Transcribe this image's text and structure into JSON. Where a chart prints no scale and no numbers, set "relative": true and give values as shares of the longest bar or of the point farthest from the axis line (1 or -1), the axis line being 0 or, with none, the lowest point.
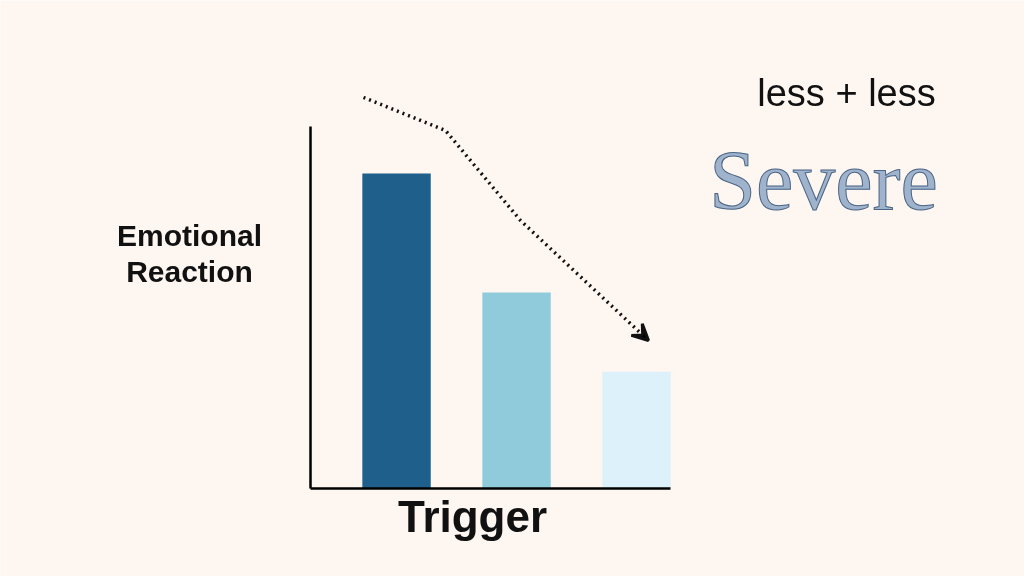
{
  "chart_data": {
    "type": "bar",
    "relative": true,
    "categories": [
      null,
      null,
      null
    ],
    "series": [
      {
        "values": [
          1,
          0.622,
          0.371
        ],
        "colors": [
          "#1f5f8b",
          "#8fcbdb",
          "#ddf1fb"
        ]
      }
    ],
    "xlabel": "Trigger",
    "ylabel": "Emotional\nReaction",
    "annotations": [
      "less + less",
      "Severe"
    ]
  }
}
